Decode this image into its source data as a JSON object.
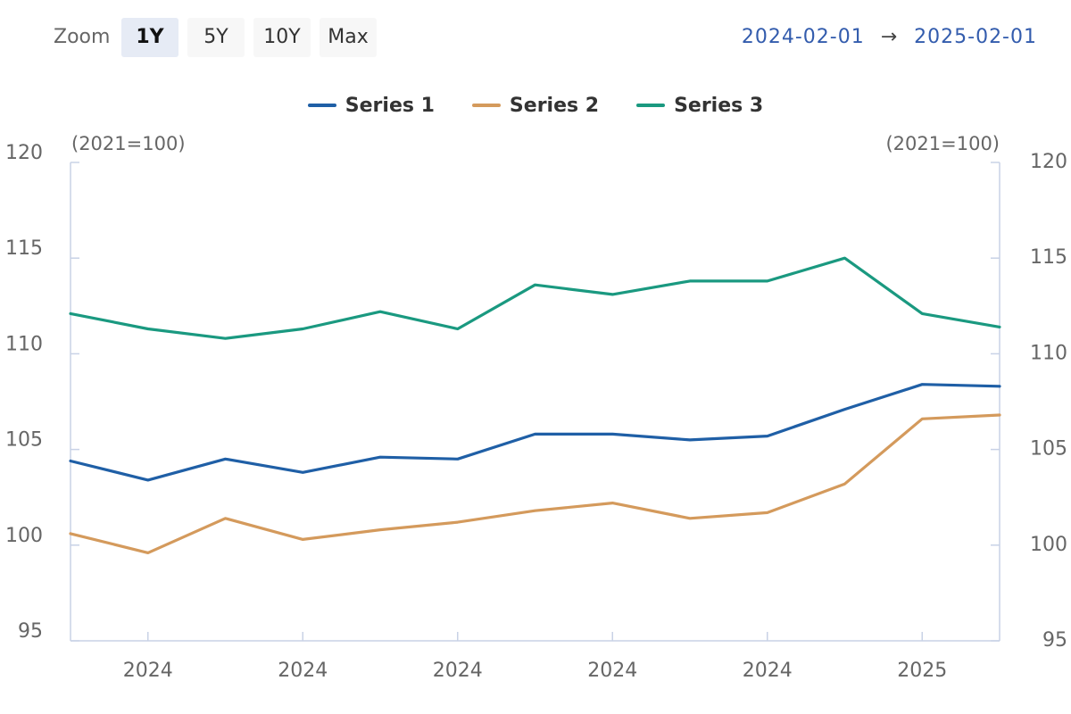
{
  "toolbar": {
    "zoom_label": "Zoom",
    "buttons": [
      "1Y",
      "5Y",
      "10Y",
      "Max"
    ],
    "active": "1Y",
    "range_start": "2024-02-01",
    "range_arrow": "→",
    "range_end": "2025-02-01"
  },
  "chart_data": {
    "type": "line",
    "x_ticks": [
      "2024",
      "2024",
      "2024",
      "2024",
      "2024",
      "2025"
    ],
    "y_unit_left": "(2021=100)",
    "y_unit_right": "(2021=100)",
    "ylim": [
      95,
      120
    ],
    "y_ticks": [
      95,
      100,
      105,
      110,
      115,
      120
    ],
    "series": [
      {
        "name": "Series 1",
        "color": "#1f5fa6",
        "values": [
          104.4,
          103.4,
          104.5,
          103.8,
          104.6,
          104.5,
          105.8,
          105.8,
          105.5,
          105.7,
          107.1,
          108.4,
          108.3
        ]
      },
      {
        "name": "Series 2",
        "color": "#d49a5c",
        "values": [
          100.6,
          99.6,
          101.4,
          100.3,
          100.8,
          101.2,
          101.8,
          102.2,
          101.4,
          101.7,
          103.2,
          106.6,
          106.8
        ]
      },
      {
        "name": "Series 3",
        "color": "#1a9980",
        "values": [
          112.1,
          111.3,
          110.8,
          111.3,
          112.2,
          111.3,
          113.6,
          113.1,
          113.8,
          113.8,
          115.0,
          112.1,
          111.4
        ]
      }
    ]
  }
}
